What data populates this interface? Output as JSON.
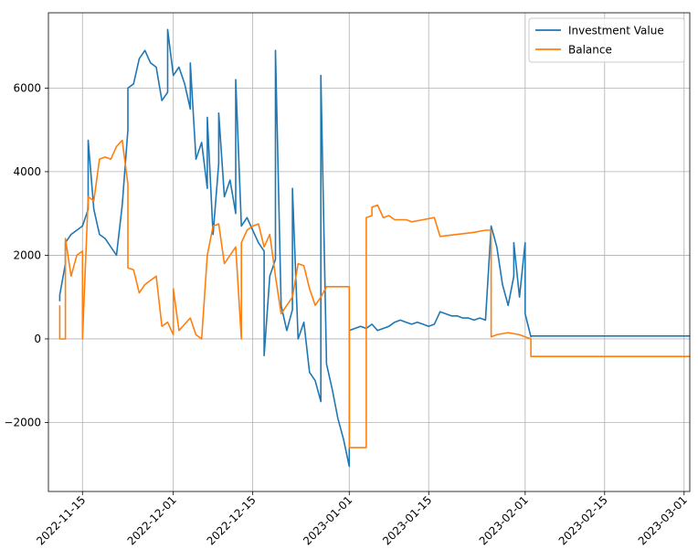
{
  "chart_data": {
    "type": "line",
    "title": "",
    "xlabel": "",
    "ylabel": "",
    "grid": true,
    "legend_position": "top-right",
    "x_axis": {
      "type": "date",
      "range": [
        "2022-11-09",
        "2023-03-02"
      ],
      "tick_labels": [
        "2022-11-15",
        "2022-12-01",
        "2022-12-15",
        "2023-01-01",
        "2023-01-15",
        "2023-02-01",
        "2023-02-15",
        "2023-03-01"
      ]
    },
    "y_axis": {
      "range": [
        -3650,
        7800
      ],
      "ticks": [
        -2000,
        0,
        2000,
        4000,
        6000
      ],
      "tick_labels": [
        "−2000",
        "0",
        "2000",
        "4000",
        "6000"
      ]
    },
    "series": [
      {
        "name": "Investment Value",
        "color": "#1f77b4",
        "points": [
          [
            "2022-11-11",
            900
          ],
          [
            "2022-11-11",
            1050
          ],
          [
            "2022-11-12",
            1800
          ],
          [
            "2022-11-12",
            2300
          ],
          [
            "2022-11-13",
            2500
          ],
          [
            "2022-11-14",
            2600
          ],
          [
            "2022-11-15",
            2700
          ],
          [
            "2022-11-16",
            3100
          ],
          [
            "2022-11-16",
            4750
          ],
          [
            "2022-11-17",
            3100
          ],
          [
            "2022-11-18",
            2500
          ],
          [
            "2022-11-19",
            2400
          ],
          [
            "2022-11-20",
            2200
          ],
          [
            "2022-11-21",
            2000
          ],
          [
            "2022-11-22",
            3200
          ],
          [
            "2022-11-23",
            5000
          ],
          [
            "2022-11-23",
            6000
          ],
          [
            "2022-11-24",
            6100
          ],
          [
            "2022-11-25",
            6700
          ],
          [
            "2022-11-26",
            6900
          ],
          [
            "2022-11-27",
            6600
          ],
          [
            "2022-11-28",
            6500
          ],
          [
            "2022-11-29",
            5700
          ],
          [
            "2022-11-30",
            5900
          ],
          [
            "2022-11-30",
            7400
          ],
          [
            "2022-12-01",
            6300
          ],
          [
            "2022-12-02",
            6500
          ],
          [
            "2022-12-03",
            6100
          ],
          [
            "2022-12-04",
            5500
          ],
          [
            "2022-12-04",
            6600
          ],
          [
            "2022-12-05",
            4300
          ],
          [
            "2022-12-06",
            4700
          ],
          [
            "2022-12-07",
            3600
          ],
          [
            "2022-12-07",
            5300
          ],
          [
            "2022-12-08",
            2500
          ],
          [
            "2022-12-09",
            4200
          ],
          [
            "2022-12-09",
            5400
          ],
          [
            "2022-12-10",
            3400
          ],
          [
            "2022-12-11",
            3800
          ],
          [
            "2022-12-12",
            3000
          ],
          [
            "2022-12-12",
            6200
          ],
          [
            "2022-12-13",
            2700
          ],
          [
            "2022-12-14",
            2900
          ],
          [
            "2022-12-15",
            2600
          ],
          [
            "2022-12-16",
            2300
          ],
          [
            "2022-12-17",
            2100
          ],
          [
            "2022-12-17",
            -400
          ],
          [
            "2022-12-18",
            1500
          ],
          [
            "2022-12-19",
            1900
          ],
          [
            "2022-12-19",
            6900
          ],
          [
            "2022-12-20",
            800
          ],
          [
            "2022-12-21",
            200
          ],
          [
            "2022-12-22",
            700
          ],
          [
            "2022-12-22",
            3600
          ],
          [
            "2022-12-23",
            0
          ],
          [
            "2022-12-24",
            400
          ],
          [
            "2022-12-25",
            -800
          ],
          [
            "2022-12-26",
            -1000
          ],
          [
            "2022-12-27",
            -1500
          ],
          [
            "2022-12-27",
            6300
          ],
          [
            "2022-12-28",
            -600
          ],
          [
            "2022-12-29",
            -1200
          ],
          [
            "2022-12-30",
            -1900
          ],
          [
            "2022-12-31",
            -2400
          ],
          [
            "2023-01-01",
            -3050
          ],
          [
            "2023-01-01",
            200
          ],
          [
            "2023-01-02",
            250
          ],
          [
            "2023-01-03",
            300
          ],
          [
            "2023-01-04",
            250
          ],
          [
            "2023-01-05",
            350
          ],
          [
            "2023-01-06",
            200
          ],
          [
            "2023-01-07",
            250
          ],
          [
            "2023-01-08",
            300
          ],
          [
            "2023-01-09",
            400
          ],
          [
            "2023-01-10",
            450
          ],
          [
            "2023-01-11",
            400
          ],
          [
            "2023-01-12",
            350
          ],
          [
            "2023-01-13",
            400
          ],
          [
            "2023-01-14",
            350
          ],
          [
            "2023-01-15",
            300
          ],
          [
            "2023-01-16",
            350
          ],
          [
            "2023-01-17",
            650
          ],
          [
            "2023-01-18",
            600
          ],
          [
            "2023-01-19",
            550
          ],
          [
            "2023-01-20",
            550
          ],
          [
            "2023-01-21",
            500
          ],
          [
            "2023-01-22",
            500
          ],
          [
            "2023-01-23",
            450
          ],
          [
            "2023-01-24",
            500
          ],
          [
            "2023-01-25",
            450
          ],
          [
            "2023-01-26",
            2700
          ],
          [
            "2023-01-27",
            2200
          ],
          [
            "2023-01-28",
            1300
          ],
          [
            "2023-01-29",
            800
          ],
          [
            "2023-01-30",
            1500
          ],
          [
            "2023-01-30",
            2300
          ],
          [
            "2023-01-31",
            1000
          ],
          [
            "2023-02-01",
            2300
          ],
          [
            "2023-02-01",
            600
          ],
          [
            "2023-02-02",
            50
          ],
          [
            "2023-02-02",
            70
          ],
          [
            "2023-03-02",
            70
          ]
        ]
      },
      {
        "name": "Balance",
        "color": "#ff7f0e",
        "points": [
          [
            "2022-11-11",
            800
          ],
          [
            "2022-11-11",
            0
          ],
          [
            "2022-11-12",
            0
          ],
          [
            "2022-11-12",
            2400
          ],
          [
            "2022-11-13",
            1500
          ],
          [
            "2022-11-14",
            2000
          ],
          [
            "2022-11-15",
            2100
          ],
          [
            "2022-11-15",
            0
          ],
          [
            "2022-11-16",
            3400
          ],
          [
            "2022-11-17",
            3300
          ],
          [
            "2022-11-18",
            4300
          ],
          [
            "2022-11-19",
            4350
          ],
          [
            "2022-11-20",
            4300
          ],
          [
            "2022-11-21",
            4600
          ],
          [
            "2022-11-22",
            4750
          ],
          [
            "2022-11-23",
            3700
          ],
          [
            "2022-11-23",
            1700
          ],
          [
            "2022-11-24",
            1650
          ],
          [
            "2022-11-25",
            1100
          ],
          [
            "2022-11-26",
            1300
          ],
          [
            "2022-11-27",
            1400
          ],
          [
            "2022-11-28",
            1500
          ],
          [
            "2022-11-29",
            300
          ],
          [
            "2022-11-30",
            400
          ],
          [
            "2022-12-01",
            100
          ],
          [
            "2022-12-01",
            1200
          ],
          [
            "2022-12-02",
            200
          ],
          [
            "2022-12-03",
            350
          ],
          [
            "2022-12-04",
            500
          ],
          [
            "2022-12-05",
            100
          ],
          [
            "2022-12-06",
            0
          ],
          [
            "2022-12-07",
            2000
          ],
          [
            "2022-12-08",
            2700
          ],
          [
            "2022-12-09",
            2750
          ],
          [
            "2022-12-10",
            1800
          ],
          [
            "2022-12-11",
            2000
          ],
          [
            "2022-12-12",
            2200
          ],
          [
            "2022-12-13",
            0
          ],
          [
            "2022-12-13",
            2300
          ],
          [
            "2022-12-14",
            2600
          ],
          [
            "2022-12-15",
            2700
          ],
          [
            "2022-12-16",
            2750
          ],
          [
            "2022-12-17",
            2200
          ],
          [
            "2022-12-18",
            2500
          ],
          [
            "2022-12-19",
            1500
          ],
          [
            "2022-12-20",
            600
          ],
          [
            "2022-12-21",
            800
          ],
          [
            "2022-12-22",
            1000
          ],
          [
            "2022-12-23",
            1800
          ],
          [
            "2022-12-24",
            1750
          ],
          [
            "2022-12-25",
            1200
          ],
          [
            "2022-12-26",
            800
          ],
          [
            "2022-12-27",
            1000
          ],
          [
            "2022-12-28",
            1250
          ],
          [
            "2022-12-31",
            1250
          ],
          [
            "2023-01-01",
            1250
          ],
          [
            "2023-01-01",
            -2600
          ],
          [
            "2023-01-04",
            -2600
          ],
          [
            "2023-01-04",
            2900
          ],
          [
            "2023-01-05",
            2950
          ],
          [
            "2023-01-05",
            3150
          ],
          [
            "2023-01-06",
            3200
          ],
          [
            "2023-01-07",
            2900
          ],
          [
            "2023-01-08",
            2950
          ],
          [
            "2023-01-09",
            2850
          ],
          [
            "2023-01-11",
            2850
          ],
          [
            "2023-01-12",
            2800
          ],
          [
            "2023-01-14",
            2850
          ],
          [
            "2023-01-16",
            2900
          ],
          [
            "2023-01-17",
            2450
          ],
          [
            "2023-01-20",
            2500
          ],
          [
            "2023-01-23",
            2550
          ],
          [
            "2023-01-25",
            2600
          ],
          [
            "2023-01-26",
            2600
          ],
          [
            "2023-01-26",
            50
          ],
          [
            "2023-01-27",
            100
          ],
          [
            "2023-01-29",
            150
          ],
          [
            "2023-01-31",
            100
          ],
          [
            "2023-02-01",
            50
          ],
          [
            "2023-02-02",
            0
          ],
          [
            "2023-02-02",
            -420
          ],
          [
            "2023-03-02",
            -420
          ]
        ]
      }
    ]
  }
}
